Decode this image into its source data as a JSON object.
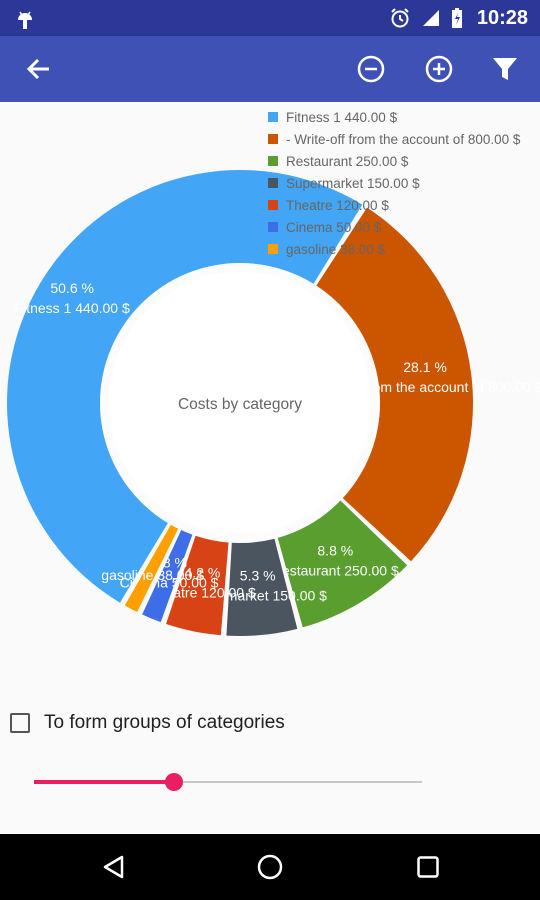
{
  "status_bar": {
    "time": "10:28"
  },
  "app_bar": {
    "icons": [
      "back-arrow-icon",
      "zoom-out-icon",
      "zoom-in-icon",
      "filter-icon"
    ]
  },
  "chart": {
    "center_label": "Costs by category",
    "slice_labels": [
      {
        "percent": "50.6 %",
        "text": "Fitness 1 440.00 $"
      },
      {
        "percent": "28.1 %",
        "text": "Write-off from the account of 800.00 $"
      },
      {
        "percent": "8.8 %",
        "text": "Restaurant 250.00 $"
      },
      {
        "percent": "5.3 %",
        "text": "Supermarket 150.00 $"
      },
      {
        "percent": "4.2 %",
        "text": "Theatre 120.00 $"
      },
      {
        "percent": "1.8 %",
        "text": "Cinema 50.00 $"
      },
      {
        "percent": "",
        "text": "gasoline 38.00 $"
      }
    ]
  },
  "chart_data": {
    "type": "pie",
    "title": "Costs by category",
    "categories": [
      "Fitness",
      "Write-off from the account of",
      "Restaurant",
      "Supermarket",
      "Theatre",
      "Cinema",
      "gasoline"
    ],
    "values": [
      1440.0,
      800.0,
      250.0,
      150.0,
      120.0,
      50.0,
      38.0
    ],
    "percents": [
      50.6,
      28.1,
      8.8,
      5.3,
      4.2,
      1.8,
      1.3
    ],
    "colors": [
      "#42a5f5",
      "#cc5500",
      "#5a9e2f",
      "#4a5560",
      "#d84315",
      "#3d6ee8",
      "#ffa000"
    ],
    "legend": [
      "Fitness 1 440.00 $",
      "- Write-off from the account of 800.00 $",
      "Restaurant 250.00 $",
      "Supermarket 150.00 $",
      "Theatre 120.00 $",
      "Cinema 50.00 $",
      "gasoline 38.00 $"
    ],
    "legend_position": "top-right",
    "donut": true
  },
  "options": {
    "group_checkbox_label": "To form groups of categories",
    "group_checkbox_checked": false,
    "slider_value": 0.36
  },
  "nav_bar": {
    "icons": [
      "back-triangle-icon",
      "home-circle-icon",
      "recents-square-icon"
    ]
  }
}
